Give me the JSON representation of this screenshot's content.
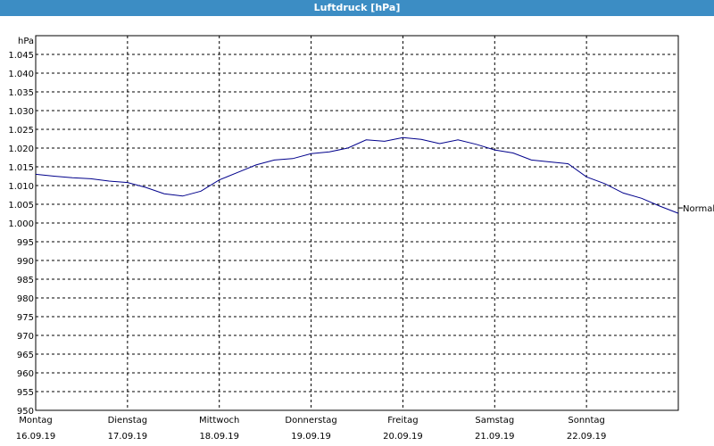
{
  "window": {
    "title": "Luftdruck [hPa]"
  },
  "chart_data": {
    "type": "line",
    "title": "Luftdruck [hPa]",
    "ylabel": "hPa",
    "xlabel": "",
    "ylim": [
      950,
      1050
    ],
    "y_ticks": [
      "950",
      "955",
      "960",
      "965",
      "970",
      "975",
      "980",
      "985",
      "990",
      "995",
      "1.000",
      "1.005",
      "1.010",
      "1.015",
      "1.020",
      "1.025",
      "1.030",
      "1.035",
      "1.040",
      "1.045"
    ],
    "x_ticks": [
      {
        "day": "Montag",
        "date": "16.09.19"
      },
      {
        "day": "Dienstag",
        "date": "17.09.19"
      },
      {
        "day": "Mittwoch",
        "date": "18.09.19"
      },
      {
        "day": "Donnerstag",
        "date": "19.09.19"
      },
      {
        "day": "Freitag",
        "date": "20.09.19"
      },
      {
        "day": "Samstag",
        "date": "21.09.19"
      },
      {
        "day": "Sonntag",
        "date": "22.09.19"
      }
    ],
    "xlim": [
      0,
      7
    ],
    "grid": true,
    "line_color": "#00008b",
    "end_label": "Normal",
    "series": [
      {
        "x": [
          0,
          0.2,
          0.4,
          0.6,
          0.8,
          1.0,
          1.2,
          1.4,
          1.6,
          1.8,
          2.0,
          2.2,
          2.4,
          2.6,
          2.8,
          3.0,
          3.2,
          3.4,
          3.6,
          3.8,
          4.0,
          4.2,
          4.4,
          4.6,
          4.8,
          5.0,
          5.2,
          5.4,
          5.6,
          5.8,
          6.0,
          6.2,
          6.4,
          6.6,
          6.8,
          7.0
        ],
        "values": [
          1013.0,
          1012.5,
          1012.1,
          1011.8,
          1011.2,
          1010.8,
          1009.5,
          1007.8,
          1007.2,
          1008.5,
          1011.5,
          1013.5,
          1015.5,
          1016.8,
          1017.2,
          1018.5,
          1019.0,
          1020.0,
          1022.2,
          1021.8,
          1022.8,
          1022.3,
          1021.2,
          1022.2,
          1021.0,
          1019.5,
          1018.7,
          1016.8,
          1016.3,
          1015.8,
          1012.3,
          1010.5,
          1008.0,
          1006.6,
          1004.5,
          1002.6
        ]
      }
    ]
  }
}
